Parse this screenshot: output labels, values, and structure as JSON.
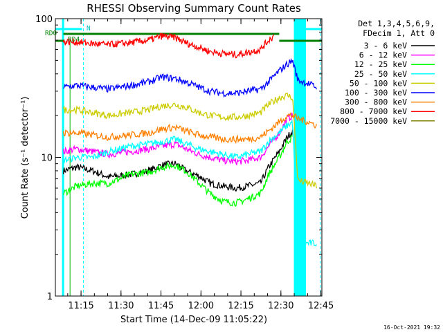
{
  "chart_data": {
    "type": "line",
    "title": "RHESSI Observing Summary Count Rates",
    "xlabel": "Start Time (14-Dec-09 11:05:22)",
    "ylabel": "Count Rate (s⁻¹ detector⁻¹)",
    "ylog": true,
    "ylim": [
      1,
      100
    ],
    "xlim_minutes": [
      0,
      100
    ],
    "x_ticks": [
      {
        "label": "11:15",
        "t": 9.63
      },
      {
        "label": "11:30",
        "t": 24.63
      },
      {
        "label": "11:45",
        "t": 39.63
      },
      {
        "label": "12:00",
        "t": 54.63
      },
      {
        "label": "12:15",
        "t": 69.63
      },
      {
        "label": "12:30",
        "t": 84.63
      },
      {
        "label": "12:45",
        "t": 99.63
      }
    ],
    "y_ticks": [
      {
        "label": "1",
        "v": 1
      },
      {
        "label": "10",
        "v": 10
      },
      {
        "label": "100",
        "v": 100
      }
    ],
    "legend_header": [
      "Det 1,3,4,5,6,9,",
      "FDecim 1, Att 0"
    ],
    "series": [
      {
        "name": "3 - 6 keV",
        "color": "#000000",
        "t": [
          3,
          8,
          14,
          20,
          28,
          35,
          40,
          45,
          49,
          54,
          58,
          63,
          68,
          72,
          77,
          80,
          84,
          87,
          89
        ],
        "v": [
          8,
          8.5,
          8,
          7.2,
          7.5,
          8,
          8.8,
          9,
          8,
          7.3,
          6.5,
          6.2,
          6,
          6.2,
          6.5,
          8.5,
          11,
          14,
          15.5
        ]
      },
      {
        "name": "6 - 12 keV",
        "color": "#ff00ff",
        "t": [
          3,
          8,
          14,
          20,
          28,
          35,
          40,
          45,
          49,
          54,
          58,
          63,
          68,
          72,
          77,
          80,
          84,
          87,
          89
        ],
        "v": [
          11,
          11.5,
          11,
          10.5,
          11,
          11.5,
          12,
          12.5,
          11.5,
          10.5,
          10,
          9.5,
          9.3,
          9.5,
          10,
          12,
          15,
          19,
          20
        ]
      },
      {
        "name": "12 - 25 keV",
        "color": "#00ff00",
        "t": [
          3,
          8,
          14,
          20,
          28,
          35,
          40,
          45,
          49,
          54,
          58,
          63,
          68,
          72,
          77,
          80,
          84,
          87,
          89
        ],
        "v": [
          5.5,
          6.2,
          6.5,
          6.5,
          7.5,
          7.8,
          8.5,
          8.8,
          8,
          6.5,
          5.5,
          4.8,
          4.7,
          5,
          5.5,
          7.5,
          10,
          13,
          14
        ]
      },
      {
        "name": "25 - 50 keV",
        "color": "#00ffff",
        "t": [
          3,
          8,
          14,
          20,
          28,
          35,
          40,
          45,
          49,
          54,
          58,
          63,
          68,
          72,
          77,
          80,
          84,
          87,
          89,
          91,
          95,
          98
        ],
        "v": [
          9.5,
          10,
          10,
          11,
          12,
          12.5,
          13,
          13.5,
          12.5,
          11.5,
          11,
          10.5,
          10,
          10.5,
          11,
          13,
          15,
          17,
          18,
          2.4,
          2.4,
          2.4
        ]
      },
      {
        "name": "50 - 100 keV",
        "color": "#cccc00",
        "t": [
          3,
          8,
          14,
          20,
          28,
          35,
          40,
          45,
          49,
          54,
          58,
          63,
          68,
          72,
          77,
          80,
          84,
          87,
          89,
          91,
          95,
          98
        ],
        "v": [
          22,
          22,
          21,
          20,
          21,
          22,
          23.5,
          24,
          23,
          21,
          20,
          19.5,
          19.5,
          20,
          21,
          24,
          27,
          28,
          27,
          6.8,
          6.5,
          6.2
        ]
      },
      {
        "name": "100 - 300 keV",
        "color": "#0000ff",
        "t": [
          3,
          8,
          14,
          20,
          28,
          35,
          40,
          45,
          49,
          54,
          58,
          63,
          68,
          72,
          77,
          80,
          84,
          87,
          89,
          91,
          95,
          98
        ],
        "v": [
          32,
          33,
          32,
          31,
          33,
          35,
          38,
          37,
          35,
          32,
          30,
          29,
          29,
          30,
          31,
          35,
          42,
          47,
          50,
          36,
          34,
          32
        ]
      },
      {
        "name": "300 - 800 keV",
        "color": "#ff8000",
        "t": [
          3,
          8,
          14,
          20,
          28,
          35,
          40,
          45,
          49,
          54,
          58,
          63,
          68,
          72,
          77,
          80,
          84,
          87,
          89,
          91,
          95,
          98
        ],
        "v": [
          15,
          15,
          14.5,
          14,
          14.5,
          15,
          16,
          16.5,
          15.5,
          14.5,
          14,
          13.5,
          13.5,
          13.5,
          14,
          15.5,
          18,
          20,
          20,
          19,
          18,
          17
        ]
      },
      {
        "name": "800 - 7000 keV",
        "color": "#ff0000",
        "t": [
          3,
          8,
          14,
          20,
          28,
          35,
          40,
          45,
          49,
          54,
          58,
          63,
          68,
          72,
          77,
          80,
          82
        ],
        "v": [
          68,
          68,
          66,
          65,
          67,
          70,
          75,
          73,
          67,
          62,
          58,
          56,
          55,
          57,
          60,
          70,
          75
        ]
      },
      {
        "name": "7000 - 15000 keV",
        "color": "#808000",
        "t": [],
        "v": []
      }
    ],
    "annotations": {
      "rd0_label": "RD0",
      "rd4_label": "RD4",
      "n_label": "N",
      "timestamp": "16-Oct-2021 19:32"
    }
  }
}
